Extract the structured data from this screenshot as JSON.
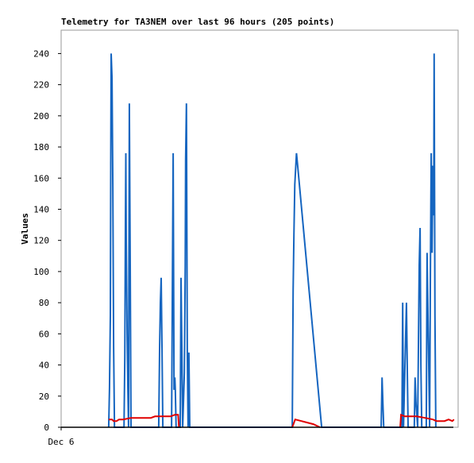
{
  "chart_data": {
    "type": "line",
    "title": "Telemetry for TA3NEM over last 96 hours (205 points)",
    "ylabel": "Values",
    "xlim": [
      0,
      96
    ],
    "ylim": [
      0,
      255
    ],
    "xticks": [
      {
        "value": 0,
        "label": "Dec 6"
      }
    ],
    "yticks": [
      0,
      20,
      40,
      60,
      80,
      100,
      120,
      140,
      160,
      180,
      200,
      220,
      240
    ],
    "series": [
      {
        "color": "#1565c0",
        "x": [
          11.5,
          11.7,
          11.9,
          12.0,
          12.1,
          12.3,
          12.5,
          12.7,
          12.9,
          15.2,
          15.4,
          15.55,
          15.65,
          15.75,
          15.95,
          16.1,
          16.3,
          16.5,
          16.7,
          16.9,
          23.6,
          23.8,
          24.0,
          24.2,
          24.4,
          24.6,
          26.7,
          26.9,
          27.1,
          27.3,
          27.5,
          27.6,
          27.8,
          28.8,
          29.0,
          29.2,
          29.4,
          29.8,
          30.0,
          30.1,
          30.3,
          30.5,
          30.7,
          30.9,
          31.1,
          55.9,
          56.1,
          56.3,
          56.5,
          56.9,
          57.2,
          63.0,
          77.4,
          77.6,
          77.8,
          78.0,
          82.4,
          82.6,
          82.8,
          83.5,
          83.7,
          83.9,
          85.4,
          85.6,
          85.8,
          86.2,
          86.6,
          86.8,
          87.0,
          87.2,
          88.3,
          88.5,
          88.7,
          88.9,
          89.1,
          89.3,
          89.5,
          89.7,
          89.9,
          90.1,
          90.2,
          90.4,
          90.6
        ],
        "values": [
          0,
          25,
          72,
          168,
          240,
          224,
          155,
          52,
          0,
          0,
          45,
          132,
          176,
          120,
          60,
          30,
          0,
          208,
          104,
          0,
          0,
          50,
          80,
          96,
          48,
          0,
          0,
          88,
          176,
          24,
          32,
          24,
          0,
          0,
          96,
          48,
          0,
          35,
          104,
          172,
          208,
          48,
          0,
          48,
          0,
          0,
          88,
          124,
          156,
          176,
          168,
          0,
          0,
          32,
          16,
          0,
          0,
          80,
          0,
          80,
          40,
          0,
          0,
          32,
          16,
          0,
          104,
          128,
          40,
          0,
          0,
          112,
          72,
          40,
          0,
          100,
          176,
          112,
          168,
          136,
          240,
          72,
          0
        ]
      },
      {
        "color": "#e00000",
        "x": [
          11.5,
          12.3,
          12.7,
          13.4,
          14.0,
          15.0,
          16.9,
          21.7,
          22.7,
          26.5,
          27.5,
          28.3,
          28.5,
          40,
          55.9,
          56.6,
          58.1,
          61.0,
          62.6,
          70,
          82.0,
          82.2,
          83.1,
          86.0,
          88.0,
          89.9,
          90.8,
          92.7,
          93.7,
          94.6,
          95.0
        ],
        "values": [
          5,
          5,
          4,
          4,
          5,
          5,
          6,
          6,
          7,
          7,
          8,
          8,
          0,
          null,
          0,
          5,
          4,
          2,
          0,
          null,
          0,
          8,
          7,
          7,
          6,
          5,
          4,
          4,
          5,
          4,
          5
        ]
      }
    ]
  }
}
